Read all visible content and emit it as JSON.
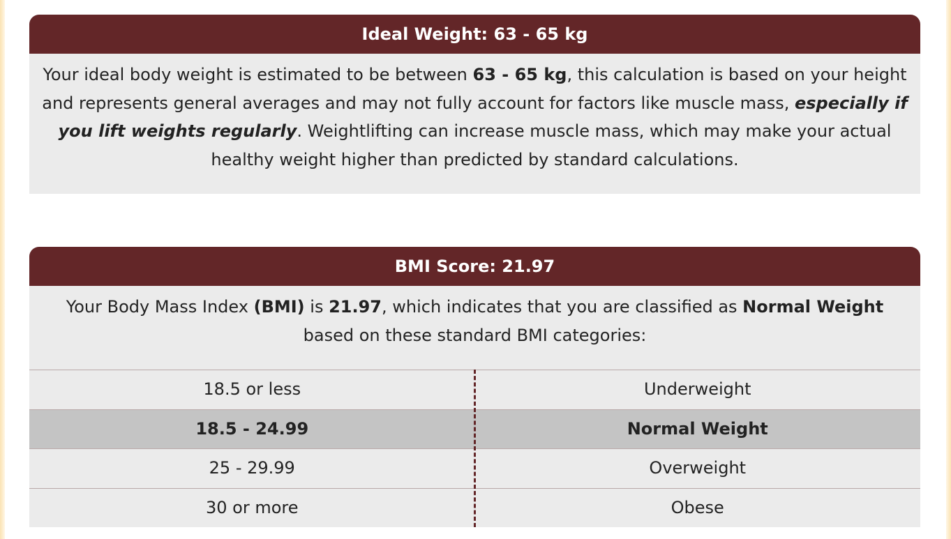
{
  "ideal_weight": {
    "header": "Ideal Weight: 63 - 65 kg",
    "text_1": "Your ideal body weight is estimated to be between ",
    "range": "63 - 65 kg",
    "text_2": ", this calculation is based on your height and represents general averages and may not fully account for factors like muscle mass, ",
    "emphasis": "especially if you lift weights regularly",
    "text_3": ". Weightlifting can increase muscle mass, which may make your actual healthy weight higher than predicted by standard calculations."
  },
  "bmi": {
    "header": "BMI Score: 21.97",
    "text_1": "Your Body Mass Index ",
    "abbr": "(BMI)",
    "text_2": " is ",
    "score": "21.97",
    "text_3": ", which indicates that you are classified as ",
    "category": "Normal Weight",
    "text_4": " based on these standard BMI categories:",
    "table": [
      {
        "range": "18.5 or less",
        "label": "Underweight",
        "active": false
      },
      {
        "range": "18.5 - 24.99",
        "label": "Normal Weight",
        "active": true
      },
      {
        "range": "25 - 29.99",
        "label": "Overweight",
        "active": false
      },
      {
        "range": "30 or more",
        "label": "Obese",
        "active": false
      }
    ]
  },
  "colors": {
    "header_bg": "#632628",
    "card_bg": "#ebebeb",
    "active_row_bg": "#c4c4c4"
  }
}
